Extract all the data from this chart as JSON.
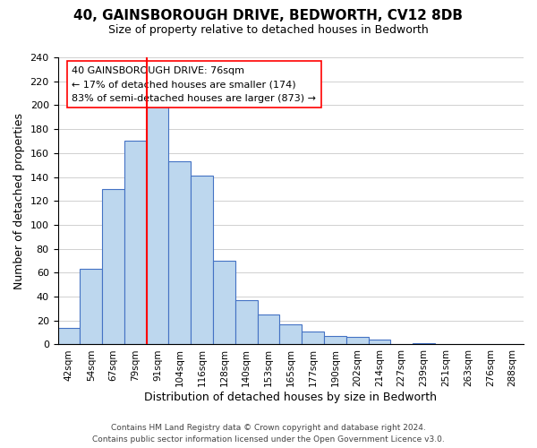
{
  "title": "40, GAINSBOROUGH DRIVE, BEDWORTH, CV12 8DB",
  "subtitle": "Size of property relative to detached houses in Bedworth",
  "xlabel": "Distribution of detached houses by size in Bedworth",
  "ylabel": "Number of detached properties",
  "bin_labels": [
    "42sqm",
    "54sqm",
    "67sqm",
    "79sqm",
    "91sqm",
    "104sqm",
    "116sqm",
    "128sqm",
    "140sqm",
    "153sqm",
    "165sqm",
    "177sqm",
    "190sqm",
    "202sqm",
    "214sqm",
    "227sqm",
    "239sqm",
    "251sqm",
    "263sqm",
    "276sqm",
    "288sqm"
  ],
  "bar_heights": [
    14,
    63,
    130,
    170,
    200,
    153,
    141,
    70,
    37,
    25,
    17,
    11,
    7,
    6,
    4,
    0,
    1,
    0,
    0,
    0,
    0
  ],
  "bar_color": "#bdd7ee",
  "bar_edge_color": "#4472c4",
  "vline_color": "red",
  "vline_pos": 3.5,
  "ylim": [
    0,
    240
  ],
  "yticks": [
    0,
    20,
    40,
    60,
    80,
    100,
    120,
    140,
    160,
    180,
    200,
    220,
    240
  ],
  "annotation_title": "40 GAINSBOROUGH DRIVE: 76sqm",
  "annotation_line1": "← 17% of detached houses are smaller (174)",
  "annotation_line2": "83% of semi-detached houses are larger (873) →",
  "footer_line1": "Contains HM Land Registry data © Crown copyright and database right 2024.",
  "footer_line2": "Contains public sector information licensed under the Open Government Licence v3.0.",
  "background_color": "#ffffff",
  "grid_color": "#d0d0d0"
}
